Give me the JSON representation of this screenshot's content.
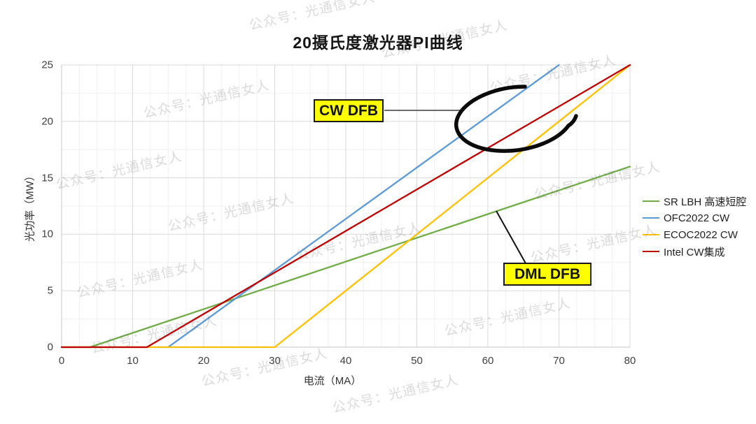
{
  "page_title": "20摄氏度激光器PI曲线",
  "watermark": {
    "text": "公众号：光通信女人",
    "color": "rgba(110,110,110,0.25)"
  },
  "chart_data": {
    "type": "line",
    "title": "20摄氏度激光器PI曲线",
    "xlabel": "电流（MA）",
    "ylabel": "光功率（MW）",
    "xlim": [
      0,
      80
    ],
    "ylim": [
      0,
      25
    ],
    "x_ticks": [
      0,
      10,
      20,
      30,
      40,
      50,
      60,
      70,
      80
    ],
    "y_ticks": [
      0,
      5,
      10,
      15,
      20,
      25
    ],
    "minor_step_x": 2.5,
    "minor_step_y": 2.5,
    "grid": "major and minor gridlines, light gray",
    "legend_position": "right",
    "series": [
      {
        "name": "SR LBH 高速短腔",
        "color": "#70AD47",
        "points": [
          [
            0,
            0
          ],
          [
            4,
            0
          ],
          [
            80,
            16
          ]
        ]
      },
      {
        "name": "OFC2022 CW",
        "color": "#5B9BD5",
        "points": [
          [
            15,
            0
          ],
          [
            70,
            25
          ]
        ]
      },
      {
        "name": "ECOC2022 CW",
        "color": "#FFC000",
        "points": [
          [
            0,
            0
          ],
          [
            30,
            0
          ],
          [
            80,
            25
          ]
        ]
      },
      {
        "name": "Intel CW集成",
        "color": "#C00000",
        "points": [
          [
            0,
            0
          ],
          [
            12,
            0
          ],
          [
            80,
            25
          ]
        ]
      }
    ]
  },
  "annotations": {
    "cw_dfb_label": "CW DFB",
    "dml_dfb_label": "DML DFB",
    "box_fill": "#FFFF00",
    "box_border": "#1a1a1a",
    "ellipse_color": "#0a0a0a"
  }
}
